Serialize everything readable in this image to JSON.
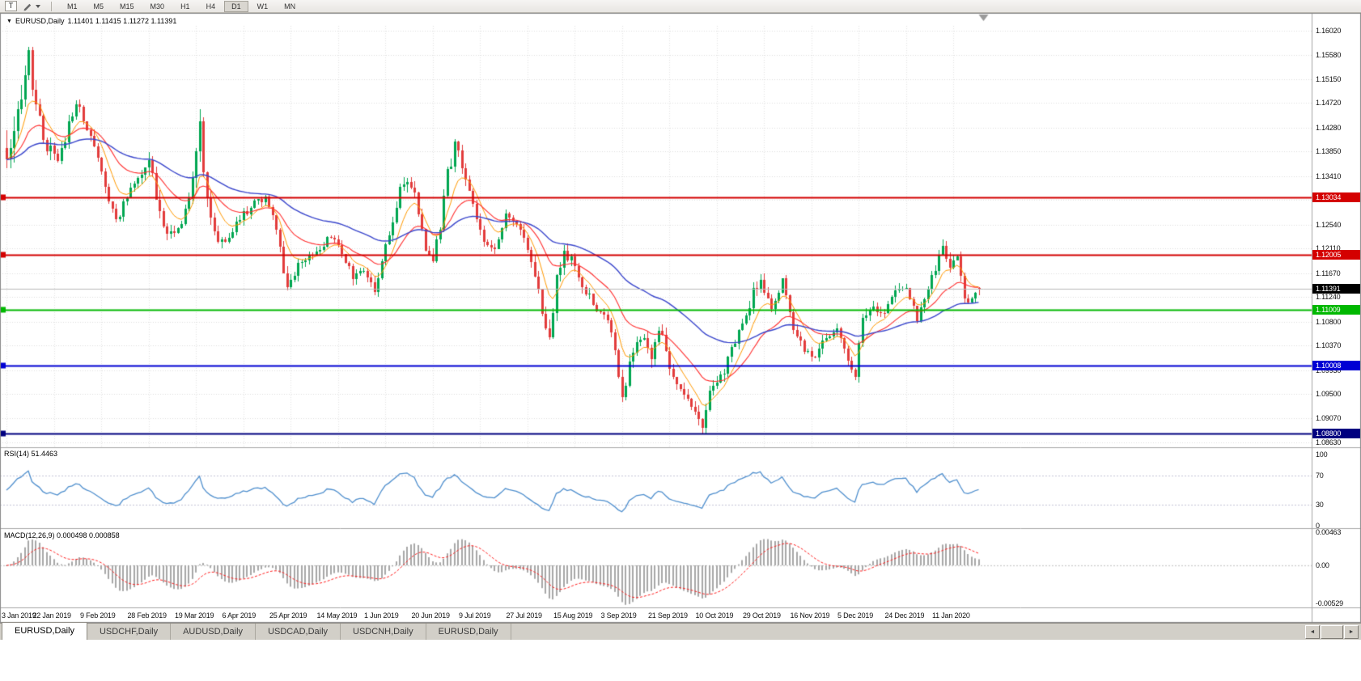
{
  "icons": {
    "title_dropdown": "▼",
    "scroll_left": "◄",
    "scroll_right": "►"
  },
  "toolbar": {
    "text_tool": "T",
    "timeframes": [
      "M1",
      "M5",
      "M15",
      "M30",
      "H1",
      "H4",
      "D1",
      "W1",
      "MN"
    ],
    "active_timeframe": "D1"
  },
  "chart_header": {
    "symbol_timeframe": "EURUSD,Daily",
    "ohlc_text": "1.11401 1.11415 1.11272 1.11391"
  },
  "chart_data": {
    "type": "candlestick",
    "symbol": "EURUSD",
    "timeframe": "Daily",
    "title": "EURUSD,Daily",
    "current_bar": {
      "open": 1.11401,
      "high": 1.11415,
      "low": 1.11272,
      "close": 1.11391
    },
    "ylim": [
      1.0863,
      1.1602
    ],
    "y_ticks": [
      "1.16020",
      "1.15580",
      "1.15150",
      "1.14720",
      "1.14280",
      "1.13850",
      "1.13410",
      "1.12980",
      "1.12540",
      "1.12110",
      "1.11670",
      "1.11240",
      "1.10800",
      "1.10370",
      "1.09930",
      "1.09500",
      "1.09070",
      "1.08630"
    ],
    "x_dates": [
      "3 Jan 2019",
      "22 Jan 2019",
      "9 Feb 2019",
      "28 Feb 2019",
      "19 Mar 2019",
      "6 Apr 2019",
      "25 Apr 2019",
      "14 May 2019",
      "1 Jun 2019",
      "20 Jun 2019",
      "9 Jul 2019",
      "27 Jul 2019",
      "15 Aug 2019",
      "3 Sep 2019",
      "21 Sep 2019",
      "10 Oct 2019",
      "29 Oct 2019",
      "16 Nov 2019",
      "5 Dec 2019",
      "24 Dec 2019",
      "11 Jan 2020"
    ],
    "bars_visible": 268,
    "price_path_anchors": [
      [
        0,
        1.1392,
        2.6
      ],
      [
        2,
        1.1405,
        2.2
      ],
      [
        4,
        1.1478,
        2.4
      ],
      [
        6,
        1.1552,
        2.2
      ],
      [
        8,
        1.1468,
        1.7
      ],
      [
        11,
        1.1392,
        1.3
      ],
      [
        14,
        1.1368,
        1.1
      ],
      [
        17,
        1.1432,
        1.2
      ],
      [
        19,
        1.1478,
        1.5
      ],
      [
        21,
        1.1442,
        1.1
      ],
      [
        24,
        1.1392,
        1.0
      ],
      [
        27,
        1.1322,
        1.0
      ],
      [
        30,
        1.1262,
        1.0
      ],
      [
        33,
        1.13,
        0.9
      ],
      [
        36,
        1.1336,
        0.9
      ],
      [
        39,
        1.1372,
        1.1
      ],
      [
        41,
        1.1306,
        1.1
      ],
      [
        43,
        1.1242,
        1.7
      ],
      [
        45,
        1.1236,
        1.0
      ],
      [
        48,
        1.1262,
        0.9
      ],
      [
        51,
        1.1332,
        1.0
      ],
      [
        53,
        1.1422,
        1.9
      ],
      [
        55,
        1.1302,
        1.4
      ],
      [
        58,
        1.1222,
        1.1
      ],
      [
        61,
        1.1232,
        0.9
      ],
      [
        64,
        1.1266,
        0.8
      ],
      [
        68,
        1.1292,
        0.8
      ],
      [
        71,
        1.1306,
        0.8
      ],
      [
        74,
        1.1242,
        0.9
      ],
      [
        77,
        1.1142,
        1.1
      ],
      [
        80,
        1.1182,
        0.9
      ],
      [
        83,
        1.1202,
        0.8
      ],
      [
        86,
        1.1216,
        0.8
      ],
      [
        89,
        1.1232,
        0.8
      ],
      [
        92,
        1.1202,
        0.7
      ],
      [
        95,
        1.1162,
        0.8
      ],
      [
        98,
        1.1172,
        0.7
      ],
      [
        101,
        1.1132,
        0.9
      ],
      [
        103,
        1.1182,
        0.9
      ],
      [
        105,
        1.1242,
        1.2
      ],
      [
        107,
        1.1292,
        1.1
      ],
      [
        109,
        1.1332,
        1.2
      ],
      [
        112,
        1.1312,
        0.9
      ],
      [
        115,
        1.1212,
        1.0
      ],
      [
        117,
        1.1196,
        0.9
      ],
      [
        119,
        1.1252,
        1.2
      ],
      [
        121,
        1.1342,
        1.4
      ],
      [
        123,
        1.1398,
        1.4
      ],
      [
        125,
        1.1362,
        1.0
      ],
      [
        128,
        1.1286,
        0.9
      ],
      [
        131,
        1.1222,
        0.9
      ],
      [
        134,
        1.1216,
        0.8
      ],
      [
        137,
        1.1272,
        0.9
      ],
      [
        140,
        1.1252,
        0.8
      ],
      [
        143,
        1.1216,
        0.9
      ],
      [
        146,
        1.1136,
        1.0
      ],
      [
        148,
        1.1062,
        1.3
      ],
      [
        149,
        1.1042,
        1.6
      ],
      [
        151,
        1.1152,
        1.3
      ],
      [
        153,
        1.1202,
        1.1
      ],
      [
        156,
        1.1182,
        0.9
      ],
      [
        159,
        1.1132,
        0.9
      ],
      [
        162,
        1.1102,
        0.9
      ],
      [
        165,
        1.1082,
        0.9
      ],
      [
        167,
        1.1032,
        0.9
      ],
      [
        169,
        1.0942,
        1.1
      ],
      [
        172,
        1.1032,
        1.1
      ],
      [
        175,
        1.1046,
        0.9
      ],
      [
        177,
        1.1008,
        1.4
      ],
      [
        179,
        1.1072,
        1.1
      ],
      [
        182,
        1.1002,
        0.9
      ],
      [
        185,
        1.0962,
        0.9
      ],
      [
        188,
        1.0932,
        0.9
      ],
      [
        191,
        1.0892,
        1.1
      ],
      [
        193,
        1.0962,
        1.0
      ],
      [
        196,
        1.0978,
        0.9
      ],
      [
        199,
        1.1028,
        1.0
      ],
      [
        202,
        1.1072,
        0.9
      ],
      [
        205,
        1.1132,
        1.0
      ],
      [
        207,
        1.1152,
        0.9
      ],
      [
        210,
        1.1106,
        0.8
      ],
      [
        213,
        1.1152,
        0.9
      ],
      [
        216,
        1.1072,
        0.9
      ],
      [
        219,
        1.1032,
        0.8
      ],
      [
        222,
        1.1012,
        0.8
      ],
      [
        225,
        1.1052,
        0.8
      ],
      [
        228,
        1.1062,
        0.7
      ],
      [
        231,
        1.1012,
        0.8
      ],
      [
        233,
        1.0986,
        0.8
      ],
      [
        235,
        1.1082,
        1.0
      ],
      [
        238,
        1.1102,
        0.9
      ],
      [
        241,
        1.1092,
        0.8
      ],
      [
        244,
        1.1132,
        0.9
      ],
      [
        247,
        1.1146,
        0.8
      ],
      [
        250,
        1.1086,
        0.9
      ],
      [
        253,
        1.1142,
        0.8
      ],
      [
        255,
        1.1176,
        0.9
      ],
      [
        257,
        1.1212,
        1.0
      ],
      [
        259,
        1.1172,
        0.9
      ],
      [
        261,
        1.1196,
        0.8
      ],
      [
        263,
        1.1116,
        0.9
      ],
      [
        265,
        1.1126,
        0.8
      ],
      [
        267,
        1.1139,
        0.7
      ]
    ],
    "key_extremes": {
      "low": {
        "bar": 191,
        "price": 1.0879
      },
      "high": {
        "bar": 6,
        "price": 1.157
      }
    },
    "horizontal_levels": [
      {
        "price": 1.13034,
        "label": "1.13034",
        "color": "#d40000"
      },
      {
        "price": 1.12005,
        "label": "1.12005",
        "color": "#d40000"
      },
      {
        "price": 1.11009,
        "label": "1.11009",
        "color": "#00b800"
      },
      {
        "price": 1.10008,
        "label": "1.10008",
        "color": "#0000d4"
      },
      {
        "price": 1.088,
        "label": "1.08800",
        "color": "#000080"
      }
    ],
    "current_price": {
      "value": 1.11391,
      "label": "1.11391",
      "badge_bg": "#000000",
      "line_color": "#b8b8b8"
    },
    "candle_colors": {
      "up": "#00a651",
      "down": "#e23b3b"
    },
    "ma_colors": [
      "#ff9900",
      "#ff2d2d",
      "#3a46cc"
    ],
    "grid": "dotted",
    "rsi": {
      "label": "RSI(14) 51.4463",
      "value": 51.4463,
      "period": 14,
      "axis": [
        "100",
        "70",
        "30",
        "0"
      ],
      "levels": [
        70,
        30
      ],
      "color": "#4f8fce"
    },
    "macd": {
      "label": "MACD(12,26,9) 0.000498 0.000858",
      "values": [
        0.000498,
        0.000858
      ],
      "axis": [
        {
          "text": "0.00463",
          "value": 0.00463
        },
        {
          "text": "0.00",
          "value": 0
        },
        {
          "text": "-0.00529",
          "value": -0.00529
        }
      ],
      "hist_color": "#a8a8a8",
      "signal_color": "#ff2020"
    }
  },
  "tabs": {
    "items": [
      {
        "label": "EURUSD,Daily",
        "active": true
      },
      {
        "label": "USDCHF,Daily",
        "active": false
      },
      {
        "label": "AUDUSD,Daily",
        "active": false
      },
      {
        "label": "USDCAD,Daily",
        "active": false
      },
      {
        "label": "USDCNH,Daily",
        "active": false
      },
      {
        "label": "EURUSD,Daily",
        "active": false
      }
    ]
  }
}
